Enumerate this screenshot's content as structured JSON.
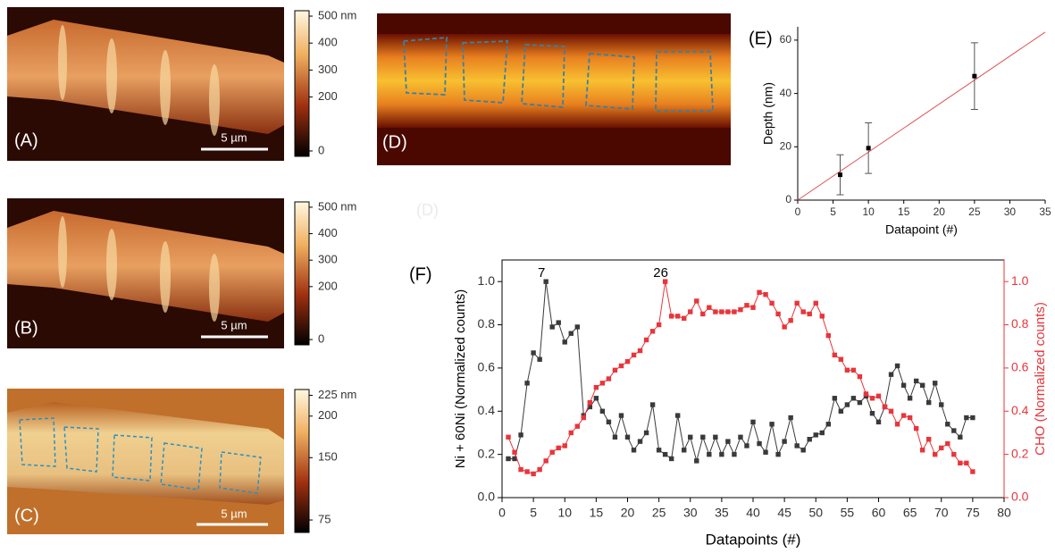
{
  "panels": [
    {
      "label": "(A)",
      "scale_bar": "5 µm",
      "colorbar": {
        "lim": [
          -20,
          520
        ],
        "ticks": [
          {
            "value": 500,
            "label": "500 nm"
          },
          400,
          300,
          200,
          0
        ]
      }
    },
    {
      "label": "(B)",
      "scale_bar": "5 µm",
      "colorbar": {
        "lim": [
          -20,
          520
        ],
        "ticks": [
          {
            "value": 500,
            "label": "500 nm"
          },
          400,
          300,
          200,
          0
        ]
      }
    },
    {
      "label": "(C)",
      "scale_bar": "5 µm",
      "colorbar": {
        "lim": [
          60,
          232
        ],
        "ticks": [
          {
            "value": 225,
            "label": "225 nm"
          },
          200,
          150,
          75
        ]
      }
    },
    {
      "label": "(D)"
    }
  ],
  "ghost_label": "(D)",
  "chart_data": [
    {
      "type": "scatter",
      "title": "(E)",
      "x_label": "Datapoint (#)",
      "y_label": "Depth (nm)",
      "x": [
        6,
        10,
        25
      ],
      "values": [
        9.5,
        19.5,
        46.5
      ],
      "errors": [
        7.5,
        9.5,
        12.5
      ],
      "color": "#000000",
      "fit": {
        "x": [
          0,
          35
        ],
        "values": [
          0,
          63
        ],
        "color": "#e05050"
      },
      "xlim": [
        0,
        35
      ],
      "ylim": [
        0,
        65
      ],
      "xticks": [
        0,
        5,
        10,
        15,
        20,
        25,
        30,
        35
      ],
      "yticks": [
        0,
        20,
        40,
        60
      ]
    },
    {
      "type": "line",
      "title": "(F)",
      "x_label": "Datapoints (#)",
      "y_label": "Ni + 60Ni (Normalized counts)",
      "y2_label": "CHO (Normalized counts)",
      "x": [
        1,
        2,
        3,
        4,
        5,
        6,
        7,
        8,
        9,
        10,
        11,
        12,
        13,
        14,
        15,
        16,
        17,
        18,
        19,
        20,
        21,
        22,
        23,
        24,
        25,
        26,
        27,
        28,
        29,
        30,
        31,
        32,
        33,
        34,
        35,
        36,
        37,
        38,
        39,
        40,
        41,
        42,
        43,
        44,
        45,
        46,
        47,
        48,
        49,
        50,
        51,
        52,
        53,
        54,
        55,
        56,
        57,
        58,
        59,
        60,
        61,
        62,
        63,
        64,
        65,
        66,
        67,
        68,
        69,
        70,
        71,
        72,
        73,
        74,
        75
      ],
      "series": [
        {
          "color": "#3a3a3a",
          "values": [
            0.18,
            0.18,
            0.29,
            0.53,
            0.67,
            0.64,
            1.0,
            0.79,
            0.81,
            0.72,
            0.76,
            0.79,
            0.38,
            0.42,
            0.46,
            0.4,
            0.35,
            0.28,
            0.38,
            0.28,
            0.22,
            0.26,
            0.3,
            0.43,
            0.22,
            0.2,
            0.18,
            0.38,
            0.22,
            0.28,
            0.17,
            0.28,
            0.2,
            0.28,
            0.2,
            0.26,
            0.2,
            0.28,
            0.24,
            0.35,
            0.25,
            0.21,
            0.34,
            0.2,
            0.26,
            0.37,
            0.24,
            0.22,
            0.27,
            0.29,
            0.3,
            0.34,
            0.46,
            0.4,
            0.43,
            0.46,
            0.44,
            0.47,
            0.39,
            0.35,
            0.42,
            0.57,
            0.61,
            0.52,
            0.46,
            0.54,
            0.52,
            0.44,
            0.53,
            0.43,
            0.34,
            0.31,
            0.28,
            0.37,
            0.37
          ]
        },
        {
          "color": "#e8353b",
          "axis": "y2",
          "values": [
            0.28,
            0.21,
            0.13,
            0.12,
            0.11,
            0.13,
            0.17,
            0.21,
            0.23,
            0.24,
            0.3,
            0.33,
            0.37,
            0.44,
            0.51,
            0.53,
            0.55,
            0.59,
            0.61,
            0.63,
            0.66,
            0.68,
            0.73,
            0.77,
            0.8,
            1.0,
            0.84,
            0.84,
            0.83,
            0.86,
            0.91,
            0.85,
            0.88,
            0.86,
            0.86,
            0.86,
            0.86,
            0.87,
            0.89,
            0.88,
            0.95,
            0.94,
            0.9,
            0.85,
            0.79,
            0.82,
            0.9,
            0.86,
            0.85,
            0.9,
            0.84,
            0.75,
            0.66,
            0.64,
            0.59,
            0.59,
            0.56,
            0.48,
            0.46,
            0.47,
            0.42,
            0.4,
            0.34,
            0.38,
            0.37,
            0.32,
            0.22,
            0.27,
            0.2,
            0.23,
            0.25,
            0.2,
            0.16,
            0.16,
            0.12
          ]
        }
      ],
      "annotations": [
        {
          "text": "7",
          "x": 7,
          "y": 1.0
        },
        {
          "text": "26",
          "x": 26,
          "y": 1.0
        }
      ],
      "xlim": [
        0,
        80
      ],
      "ylim": [
        0,
        1.1
      ],
      "y2lim": [
        0,
        1.1
      ],
      "xticks": [
        0,
        5,
        10,
        15,
        20,
        25,
        30,
        35,
        40,
        45,
        50,
        55,
        60,
        65,
        70,
        75,
        80
      ],
      "yticks": [
        {
          "value": 0,
          "label": "0.0"
        },
        0.2,
        0.4,
        0.6,
        0.8,
        {
          "value": 1,
          "label": "1.0"
        }
      ],
      "y2ticks": [
        {
          "value": 0,
          "label": "0.0"
        },
        0.2,
        0.4,
        0.6,
        0.8,
        {
          "value": 1,
          "label": "1.0"
        }
      ]
    }
  ]
}
